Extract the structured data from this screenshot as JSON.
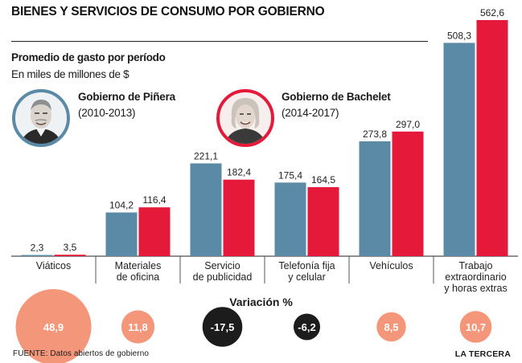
{
  "header": {
    "title": "BIENES Y SERVICIOS DE CONSUMO POR GOBIERNO",
    "subtitle": "Promedio de gasto por período",
    "units": "En miles de millones de $"
  },
  "governments": [
    {
      "name": "Gobierno de Piñera",
      "years": "(2010-2013)",
      "color": "#5b8aa6",
      "portrait": "pinera-portrait"
    },
    {
      "name": "Gobierno de Bachelet",
      "years": "(2014-2017)",
      "color": "#e51a3b",
      "portrait": "bachelet-portrait"
    }
  ],
  "chart_data": {
    "type": "bar",
    "title": "BIENES Y SERVICIOS DE CONSUMO POR GOBIERNO",
    "ylabel": "En miles de millones de $",
    "categories": [
      "Viáticos",
      "Materiales\nde oficina",
      "Servicio\nde publicidad",
      "Telefonía fija\ny celular",
      "Vehículos",
      "Trabajo\nextraordinario\ny horas extras"
    ],
    "series": [
      {
        "name": "Gobierno de Piñera (2010-2013)",
        "color": "#5b8aa6",
        "values": [
          2.3,
          104.2,
          221.1,
          175.4,
          273.8,
          508.3
        ],
        "labels": [
          "2,3",
          "104,2",
          "221,1",
          "175,4",
          "273,8",
          "508,3"
        ]
      },
      {
        "name": "Gobierno de Bachelet (2014-2017)",
        "color": "#e51a3b",
        "values": [
          3.5,
          116.4,
          182.4,
          164.5,
          297.0,
          562.6
        ],
        "labels": [
          "3,5",
          "116,4",
          "182,4",
          "164,5",
          "297,0",
          "562,6"
        ]
      }
    ],
    "ylim": [
      0,
      562.6
    ],
    "grid": false,
    "variation": {
      "title": "Variación %",
      "values": [
        48.9,
        11.8,
        -17.5,
        -6.2,
        8.5,
        10.7
      ],
      "labels": [
        "48,9",
        "11,8",
        "-17,5",
        "-6,2",
        "8,5",
        "10,7"
      ],
      "positive_color": "#f3967a",
      "negative_color": "#1c1c1c"
    }
  },
  "footer": {
    "source": "FUENTE: Datos abiertos de gobierno",
    "brand": "LA TERCERA"
  }
}
